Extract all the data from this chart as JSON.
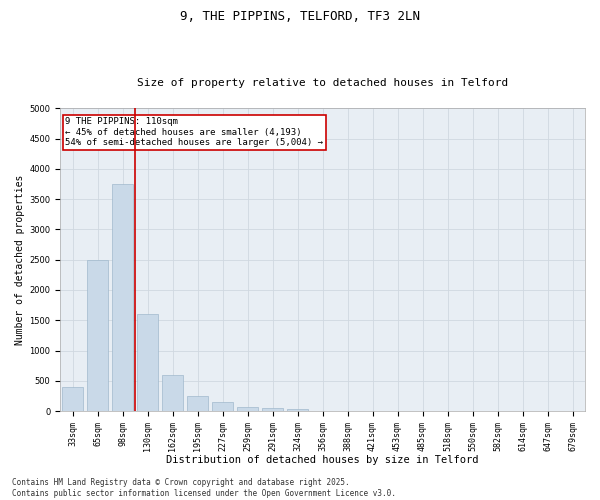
{
  "title1": "9, THE PIPPINS, TELFORD, TF3 2LN",
  "title2": "Size of property relative to detached houses in Telford",
  "xlabel": "Distribution of detached houses by size in Telford",
  "ylabel": "Number of detached properties",
  "categories": [
    "33sqm",
    "65sqm",
    "98sqm",
    "130sqm",
    "162sqm",
    "195sqm",
    "227sqm",
    "259sqm",
    "291sqm",
    "324sqm",
    "356sqm",
    "388sqm",
    "421sqm",
    "453sqm",
    "485sqm",
    "518sqm",
    "550sqm",
    "582sqm",
    "614sqm",
    "647sqm",
    "679sqm"
  ],
  "values": [
    400,
    2500,
    3750,
    1600,
    600,
    250,
    150,
    70,
    50,
    30,
    10,
    5,
    2,
    1,
    0,
    0,
    0,
    0,
    0,
    0,
    0
  ],
  "bar_color": "#c9d9e8",
  "bar_edge_color": "#a0b8cc",
  "vline_x_index": 2.5,
  "vline_color": "#cc0000",
  "annotation_text": "9 THE PIPPINS: 110sqm\n← 45% of detached houses are smaller (4,193)\n54% of semi-detached houses are larger (5,004) →",
  "annotation_box_color": "#ffffff",
  "annotation_box_edge": "#cc0000",
  "ylim": [
    0,
    5000
  ],
  "yticks": [
    0,
    500,
    1000,
    1500,
    2000,
    2500,
    3000,
    3500,
    4000,
    4500,
    5000
  ],
  "grid_color": "#d0d8e0",
  "bg_color": "#e8eef4",
  "footer": "Contains HM Land Registry data © Crown copyright and database right 2025.\nContains public sector information licensed under the Open Government Licence v3.0.",
  "title1_fontsize": 9,
  "title2_fontsize": 8,
  "xlabel_fontsize": 7.5,
  "ylabel_fontsize": 7,
  "tick_fontsize": 6,
  "annotation_fontsize": 6.5,
  "footer_fontsize": 5.5
}
